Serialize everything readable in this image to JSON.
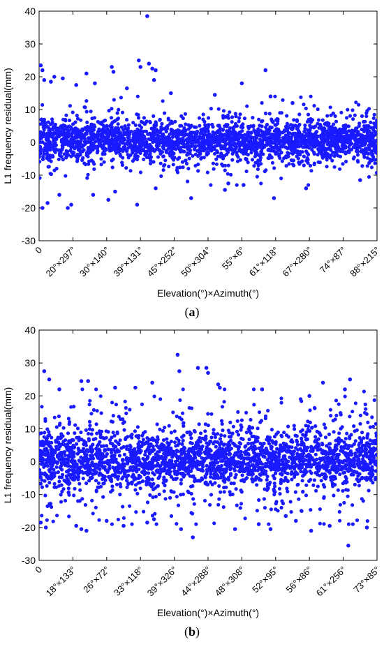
{
  "colors": {
    "marker": "#1a1aff",
    "axis": "#000000",
    "background": "#ffffff"
  },
  "panels": [
    {
      "caption_letter": "a"
    },
    {
      "caption_letter": "b"
    }
  ],
  "chart_data": [
    {
      "type": "scatter",
      "ylabel": "L1 frequency residual(mm)",
      "xlabel": "Elevation(°)×Azimuth(°)",
      "ylim": [
        -30,
        40
      ],
      "yticks": [
        -30,
        -20,
        -10,
        0,
        10,
        20,
        30,
        40
      ],
      "xticks": [
        "0",
        "20°×297°",
        "30°×140°",
        "39°×131°",
        "45°×252°",
        "50°×304°",
        "55°×6°",
        "61°×118°",
        "67°×280°",
        "74°×87°",
        "88°×215°"
      ],
      "xlim": [
        0,
        10
      ],
      "series": [
        {
          "typical_range": [
            -10,
            10
          ],
          "core_band": [
            -4,
            5
          ],
          "outliers": [
            {
              "x": 0.05,
              "y": 23.5
            },
            {
              "x": 0.1,
              "y": 22.0
            },
            {
              "x": 0.15,
              "y": 19.0
            },
            {
              "x": 0.35,
              "y": 18.5
            },
            {
              "x": 0.45,
              "y": 20.0
            },
            {
              "x": 0.7,
              "y": 19.5
            },
            {
              "x": 1.1,
              "y": 17.5
            },
            {
              "x": 1.4,
              "y": 21.0
            },
            {
              "x": 1.65,
              "y": 18.0
            },
            {
              "x": 2.15,
              "y": 23.0
            },
            {
              "x": 2.2,
              "y": 21.5
            },
            {
              "x": 2.95,
              "y": 25.0
            },
            {
              "x": 3.0,
              "y": 23.0
            },
            {
              "x": 3.2,
              "y": 38.5
            },
            {
              "x": 3.25,
              "y": 24.0
            },
            {
              "x": 3.35,
              "y": 22.5
            },
            {
              "x": 3.4,
              "y": 19.0
            },
            {
              "x": 3.45,
              "y": 22.0
            },
            {
              "x": 2.6,
              "y": 16.5
            },
            {
              "x": 3.9,
              "y": 15.0
            },
            {
              "x": 5.2,
              "y": 14.5
            },
            {
              "x": 6.0,
              "y": 18.0
            },
            {
              "x": 6.7,
              "y": 22.0
            },
            {
              "x": 6.85,
              "y": 14.0
            },
            {
              "x": 7.5,
              "y": 12.0
            },
            {
              "x": 0.1,
              "y": -20.0
            },
            {
              "x": 0.25,
              "y": -18.5
            },
            {
              "x": 0.6,
              "y": -16.0
            },
            {
              "x": 0.85,
              "y": -20.0
            },
            {
              "x": 0.95,
              "y": -19.0
            },
            {
              "x": 1.6,
              "y": -16.0
            },
            {
              "x": 2.05,
              "y": -17.5
            },
            {
              "x": 2.25,
              "y": -15.0
            },
            {
              "x": 2.9,
              "y": -19.0
            },
            {
              "x": 3.45,
              "y": -14.0
            },
            {
              "x": 4.5,
              "y": -17.0
            },
            {
              "x": 5.6,
              "y": -12.5
            },
            {
              "x": 6.05,
              "y": -13.0
            },
            {
              "x": 6.95,
              "y": -17.0
            },
            {
              "x": 7.9,
              "y": -14.0
            },
            {
              "x": 9.5,
              "y": -11.5
            },
            {
              "x": 5.5,
              "y": -14.5
            }
          ]
        }
      ]
    },
    {
      "type": "scatter",
      "ylabel": "L1 frequency residual(mm)",
      "xlabel": "Elevation(°)×Azimuth(°)",
      "ylim": [
        -30,
        40
      ],
      "yticks": [
        -30,
        -20,
        -10,
        0,
        10,
        20,
        30,
        40
      ],
      "xticks": [
        "0",
        "18°×133°",
        "26°×72°",
        "33°×118°",
        "39°×326°",
        "44°×288°",
        "48°×308°",
        "52°×95°",
        "56°×86°",
        "61°×256°",
        "73°×85°"
      ],
      "xlim": [
        0,
        10
      ],
      "series": [
        {
          "typical_range": [
            -16,
            18
          ],
          "core_band": [
            -6,
            7
          ],
          "outliers": [
            {
              "x": 0.15,
              "y": 27.5
            },
            {
              "x": 0.3,
              "y": 25.0
            },
            {
              "x": 0.6,
              "y": 22.0
            },
            {
              "x": 1.25,
              "y": 24.5
            },
            {
              "x": 1.45,
              "y": 24.5
            },
            {
              "x": 2.25,
              "y": 22.5
            },
            {
              "x": 2.85,
              "y": 22.5
            },
            {
              "x": 3.35,
              "y": 24.0
            },
            {
              "x": 4.1,
              "y": 32.5
            },
            {
              "x": 4.15,
              "y": 27.5
            },
            {
              "x": 4.7,
              "y": 28.5
            },
            {
              "x": 4.95,
              "y": 28.5
            },
            {
              "x": 5.0,
              "y": 27.0
            },
            {
              "x": 5.3,
              "y": 23.5
            },
            {
              "x": 5.35,
              "y": 22.5
            },
            {
              "x": 6.6,
              "y": 22.0
            },
            {
              "x": 8.4,
              "y": 24.0
            },
            {
              "x": 9.2,
              "y": 25.0
            },
            {
              "x": 9.05,
              "y": 22.0
            },
            {
              "x": 8.0,
              "y": 20.0
            },
            {
              "x": 0.05,
              "y": -18.5
            },
            {
              "x": 0.2,
              "y": -20.0
            },
            {
              "x": 1.1,
              "y": -19.5
            },
            {
              "x": 1.25,
              "y": -20.5
            },
            {
              "x": 1.4,
              "y": -21.0
            },
            {
              "x": 2.0,
              "y": -18.0
            },
            {
              "x": 2.5,
              "y": -19.5
            },
            {
              "x": 3.2,
              "y": -18.5
            },
            {
              "x": 4.2,
              "y": -20.5
            },
            {
              "x": 4.55,
              "y": -23.0
            },
            {
              "x": 5.8,
              "y": -20.5
            },
            {
              "x": 6.5,
              "y": -19.0
            },
            {
              "x": 6.85,
              "y": -20.5
            },
            {
              "x": 7.6,
              "y": -18.0
            },
            {
              "x": 8.05,
              "y": -21.0
            },
            {
              "x": 8.6,
              "y": -19.5
            },
            {
              "x": 9.15,
              "y": -25.5
            },
            {
              "x": 9.7,
              "y": -20.0
            },
            {
              "x": 3.4,
              "y": -17.5
            },
            {
              "x": 7.3,
              "y": -16.5
            }
          ]
        }
      ]
    }
  ]
}
